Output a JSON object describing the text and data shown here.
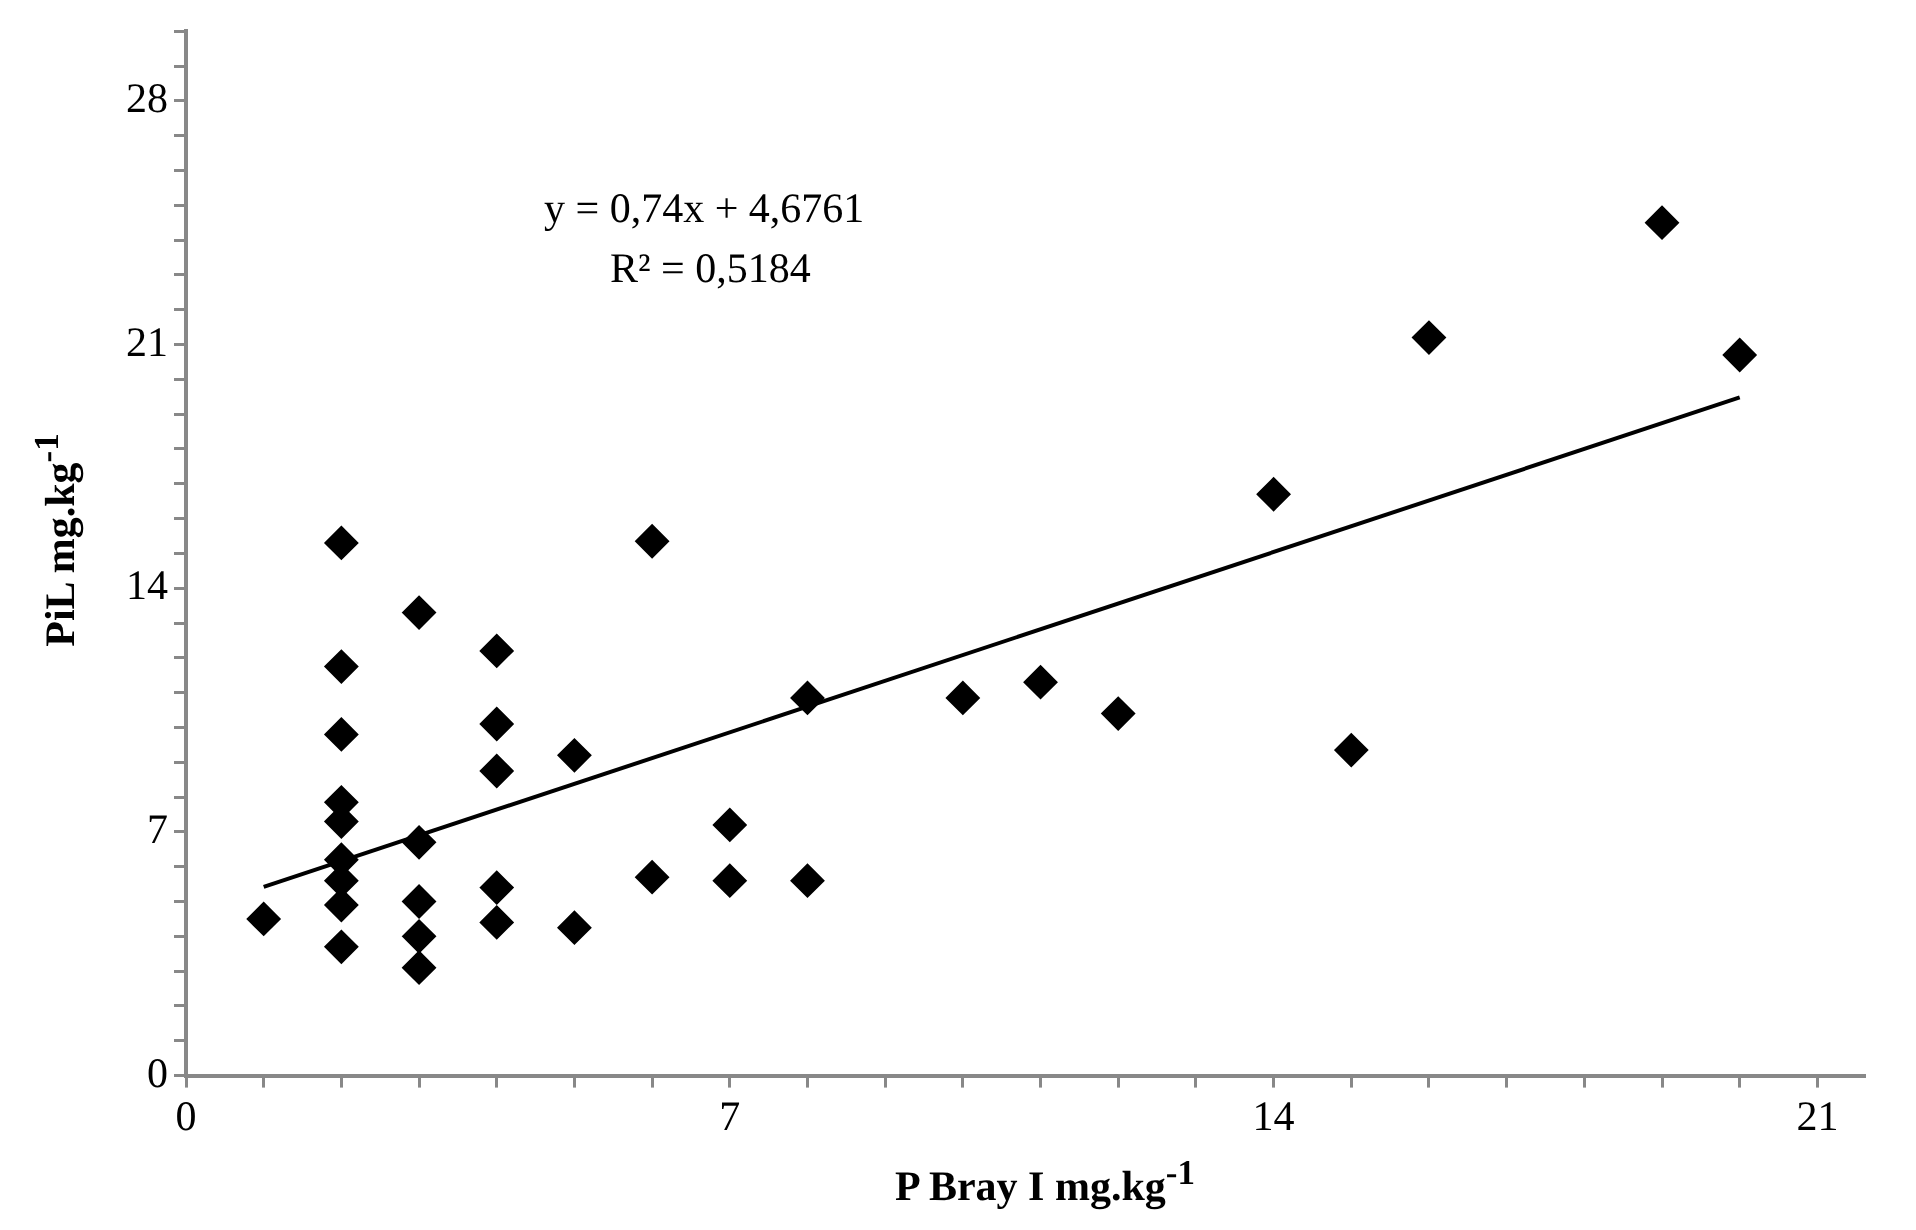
{
  "chart_data": {
    "type": "scatter",
    "xlabel": "P Bray I mg.kg$^{-1}$",
    "ylabel": "PiL mg.kg$^{-1}$",
    "xlim": [
      0,
      21.6
    ],
    "ylim": [
      0,
      30
    ],
    "xticks": [
      0,
      {
        "value": 1,
        "label": null
      },
      {
        "value": 2,
        "label": null
      },
      {
        "value": 3,
        "label": null
      },
      {
        "value": 4,
        "label": null
      },
      {
        "value": 5,
        "label": null
      },
      {
        "value": 6,
        "label": null
      },
      7,
      {
        "value": 8,
        "label": null
      },
      {
        "value": 9,
        "label": null
      },
      {
        "value": 10,
        "label": null
      },
      {
        "value": 11,
        "label": null
      },
      {
        "value": 12,
        "label": null
      },
      {
        "value": 13,
        "label": null
      },
      14,
      {
        "value": 15,
        "label": null
      },
      {
        "value": 16,
        "label": null
      },
      {
        "value": 17,
        "label": null
      },
      {
        "value": 18,
        "label": null
      },
      {
        "value": 19,
        "label": null
      },
      {
        "value": 20,
        "label": null
      },
      21
    ],
    "yticks": [
      0,
      {
        "value": 1,
        "label": null
      },
      {
        "value": 2,
        "label": null
      },
      {
        "value": 3,
        "label": null
      },
      {
        "value": 4,
        "label": null
      },
      {
        "value": 5,
        "label": null
      },
      {
        "value": 6,
        "label": null
      },
      7,
      {
        "value": 8,
        "label": null
      },
      {
        "value": 9,
        "label": null
      },
      {
        "value": 10,
        "label": null
      },
      {
        "value": 11,
        "label": null
      },
      {
        "value": 12,
        "label": null
      },
      {
        "value": 13,
        "label": null
      },
      14,
      {
        "value": 15,
        "label": null
      },
      {
        "value": 16,
        "label": null
      },
      {
        "value": 17,
        "label": null
      },
      {
        "value": 18,
        "label": null
      },
      {
        "value": 19,
        "label": null
      },
      {
        "value": 20,
        "label": null
      },
      21,
      {
        "value": 22,
        "label": null
      },
      {
        "value": 23,
        "label": null
      },
      {
        "value": 24,
        "label": null
      },
      {
        "value": 25,
        "label": null
      },
      {
        "value": 26,
        "label": null
      },
      {
        "value": 27,
        "label": null
      },
      28,
      {
        "value": 29,
        "label": null
      },
      {
        "value": 30,
        "label": null
      }
    ],
    "grid": false,
    "legend": false,
    "annotations": [
      "y = 0,74x + 4,6761",
      "R² = 0,5184"
    ],
    "series": [
      {
        "type": "scatter",
        "color": "#000000",
        "marker": "diamond",
        "x": [
          1,
          2,
          2,
          2,
          2,
          2,
          2,
          2,
          2,
          2,
          3,
          3,
          3,
          3,
          3,
          4,
          4,
          4,
          4,
          4,
          5,
          5,
          6,
          6,
          7,
          7,
          8,
          8,
          10,
          11,
          12,
          14,
          15,
          16,
          19,
          20
        ],
        "values": [
          4.5,
          15.3,
          11.75,
          9.8,
          7.85,
          7.3,
          6.2,
          5.6,
          4.9,
          3.7,
          13.3,
          6.7,
          5.0,
          4.0,
          3.1,
          12.2,
          10.1,
          8.75,
          5.4,
          4.4,
          9.2,
          4.25,
          15.35,
          5.7,
          7.2,
          5.6,
          10.85,
          5.6,
          10.85,
          11.3,
          10.4,
          16.7,
          9.35,
          21.2,
          24.5,
          20.7
        ]
      },
      {
        "type": "line",
        "color": "#000000",
        "marker": "none",
        "line_style": "solid",
        "x": [
          1,
          20
        ],
        "values": [
          5.42,
          19.48
        ]
      }
    ]
  }
}
